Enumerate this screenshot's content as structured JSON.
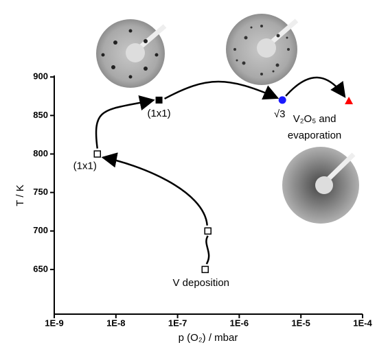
{
  "chart_data": {
    "type": "scatter",
    "x_label": "p (O₂) / mbar",
    "y_label": "T / K",
    "xlim": [
      1e-09,
      0.0001
    ],
    "ylim": [
      592,
      902
    ],
    "xscale": "log",
    "xticks": [
      {
        "value": 1e-09,
        "label": "1E-9"
      },
      {
        "value": 1e-08,
        "label": "1E-8"
      },
      {
        "value": 1e-07,
        "label": "1E-7"
      },
      {
        "value": 1e-06,
        "label": "1E-6"
      },
      {
        "value": 1e-05,
        "label": "1E-5"
      },
      {
        "value": 0.0001,
        "label": "1E-4"
      }
    ],
    "yticks": [
      650,
      700,
      750,
      800,
      850,
      900
    ],
    "points": [
      {
        "x": 2.8e-07,
        "y": 650,
        "marker": "open-square",
        "color": "#000000",
        "label": [
          "V deposition"
        ]
      },
      {
        "x": 3.1e-07,
        "y": 700,
        "marker": "open-square",
        "color": "#000000"
      },
      {
        "x": 5e-09,
        "y": 800,
        "marker": "open-square",
        "color": "#000000",
        "label": [
          "(1x1)"
        ]
      },
      {
        "x": 5e-08,
        "y": 870,
        "marker": "square",
        "color": "#000000",
        "label": [
          "(1x1)"
        ]
      },
      {
        "x": 5e-06,
        "y": 870,
        "marker": "circle",
        "color": "#1a1aff",
        "label": [
          "√3"
        ]
      },
      {
        "x": 6e-05,
        "y": 869,
        "marker": "triangle",
        "color": "#ff0000",
        "label": [
          "V₂O₅ and",
          "evaporation"
        ]
      }
    ]
  }
}
